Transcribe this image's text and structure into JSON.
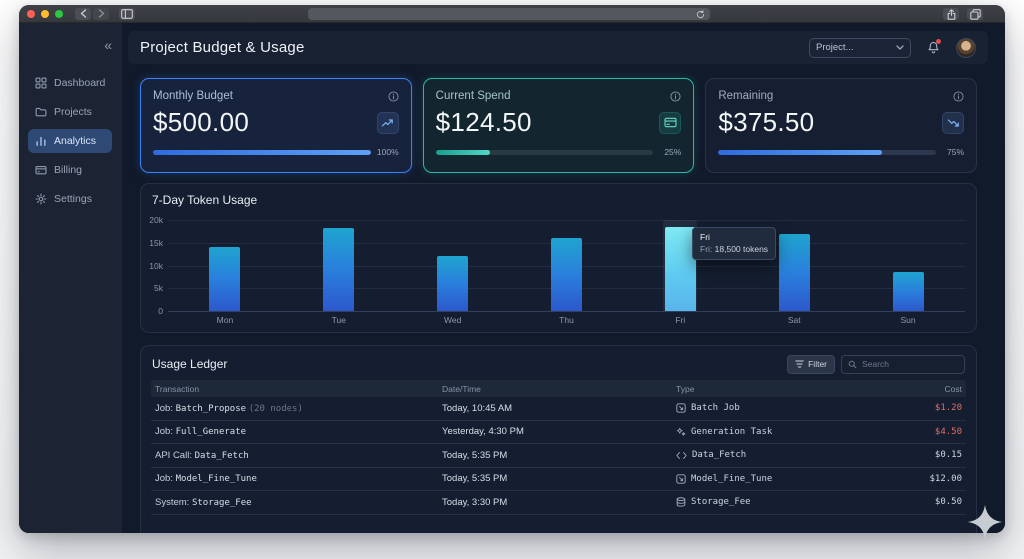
{
  "header": {
    "title": "Project Budget & Usage",
    "project_select": "Project..."
  },
  "sidebar": {
    "collapse_icon": "«",
    "items": [
      {
        "label": "Dashboard"
      },
      {
        "label": "Projects"
      },
      {
        "label": "Analytics"
      },
      {
        "label": "Billing"
      },
      {
        "label": "Settings"
      }
    ]
  },
  "stats": {
    "cards": [
      {
        "label": "Monthly Budget",
        "value": "$500.00",
        "progress": 100,
        "progress_label": "100%",
        "accent": "#3b82f6",
        "icon": "trending-up-icon"
      },
      {
        "label": "Current Spend",
        "value": "$124.50",
        "progress": 25,
        "progress_label": "25%",
        "accent": "#2dd4bf",
        "icon": "credit-card-icon"
      },
      {
        "label": "Remaining",
        "value": "$375.50",
        "progress": 75,
        "progress_label": "75%",
        "accent": "#3b82f6",
        "icon": "trending-down-icon"
      }
    ]
  },
  "chart_data": {
    "type": "bar",
    "title": "7-Day Token Usage",
    "categories": [
      "Mon",
      "Tue",
      "Wed",
      "Thu",
      "Fri",
      "Sat",
      "Sun"
    ],
    "values": [
      14000,
      18200,
      12000,
      16000,
      18500,
      17000,
      8500
    ],
    "ylim": [
      0,
      20000
    ],
    "ytick_labels": [
      "20k",
      "15k",
      "10k",
      "5k",
      "0"
    ],
    "xlabel": "",
    "ylabel": "",
    "grid": true,
    "legend": false,
    "highlight_index": 4,
    "bar_gradient": [
      "#2c62d8",
      "#26b3e0"
    ],
    "highlight_gradient": [
      "#6ea3ec",
      "#7fe9f2"
    ],
    "tooltip": {
      "title": "Fri",
      "series_label": "Fri:",
      "value_text": "18,500 tokens"
    }
  },
  "ledger": {
    "title": "Usage Ledger",
    "filter_label": "Filter",
    "search_placeholder": "Search",
    "columns": [
      "Transaction",
      "Date/Time",
      "Type",
      "Cost"
    ],
    "rows": [
      {
        "prefix": "Job:",
        "name": "Batch_Propose",
        "note": "(20 nodes)",
        "datetime": "Today, 10:45 AM",
        "type": "Batch Job",
        "type_icon": "batch-icon",
        "cost": "$1.20",
        "cost_color": "#df6e62"
      },
      {
        "prefix": "Job:",
        "name": "Full_Generate",
        "note": "",
        "datetime": "Yesterday, 4:30 PM",
        "type": "Generation Task",
        "type_icon": "sparkles-icon",
        "cost": "$4.50",
        "cost_color": "#df6e62"
      },
      {
        "prefix": "API Call:",
        "name": "Data_Fetch",
        "note": "",
        "datetime": "Today, 5:35 PM",
        "type": "Data_Fetch",
        "type_icon": "code-icon",
        "cost": "$0.15",
        "cost_color": "#ccd5e0"
      },
      {
        "prefix": "Job:",
        "name": "Model_Fine_Tune",
        "note": "",
        "datetime": "Today, 5:35 PM",
        "type": "Model_Fine_Tune",
        "type_icon": "batch-icon",
        "cost": "$12.00",
        "cost_color": "#ccd5e0"
      },
      {
        "prefix": "System:",
        "name": "Storage_Fee",
        "note": "",
        "datetime": "Today, 3:30 PM",
        "type": "Storage_Fee",
        "type_icon": "database-icon",
        "cost": "$0.50",
        "cost_color": "#ccd5e0"
      }
    ]
  }
}
